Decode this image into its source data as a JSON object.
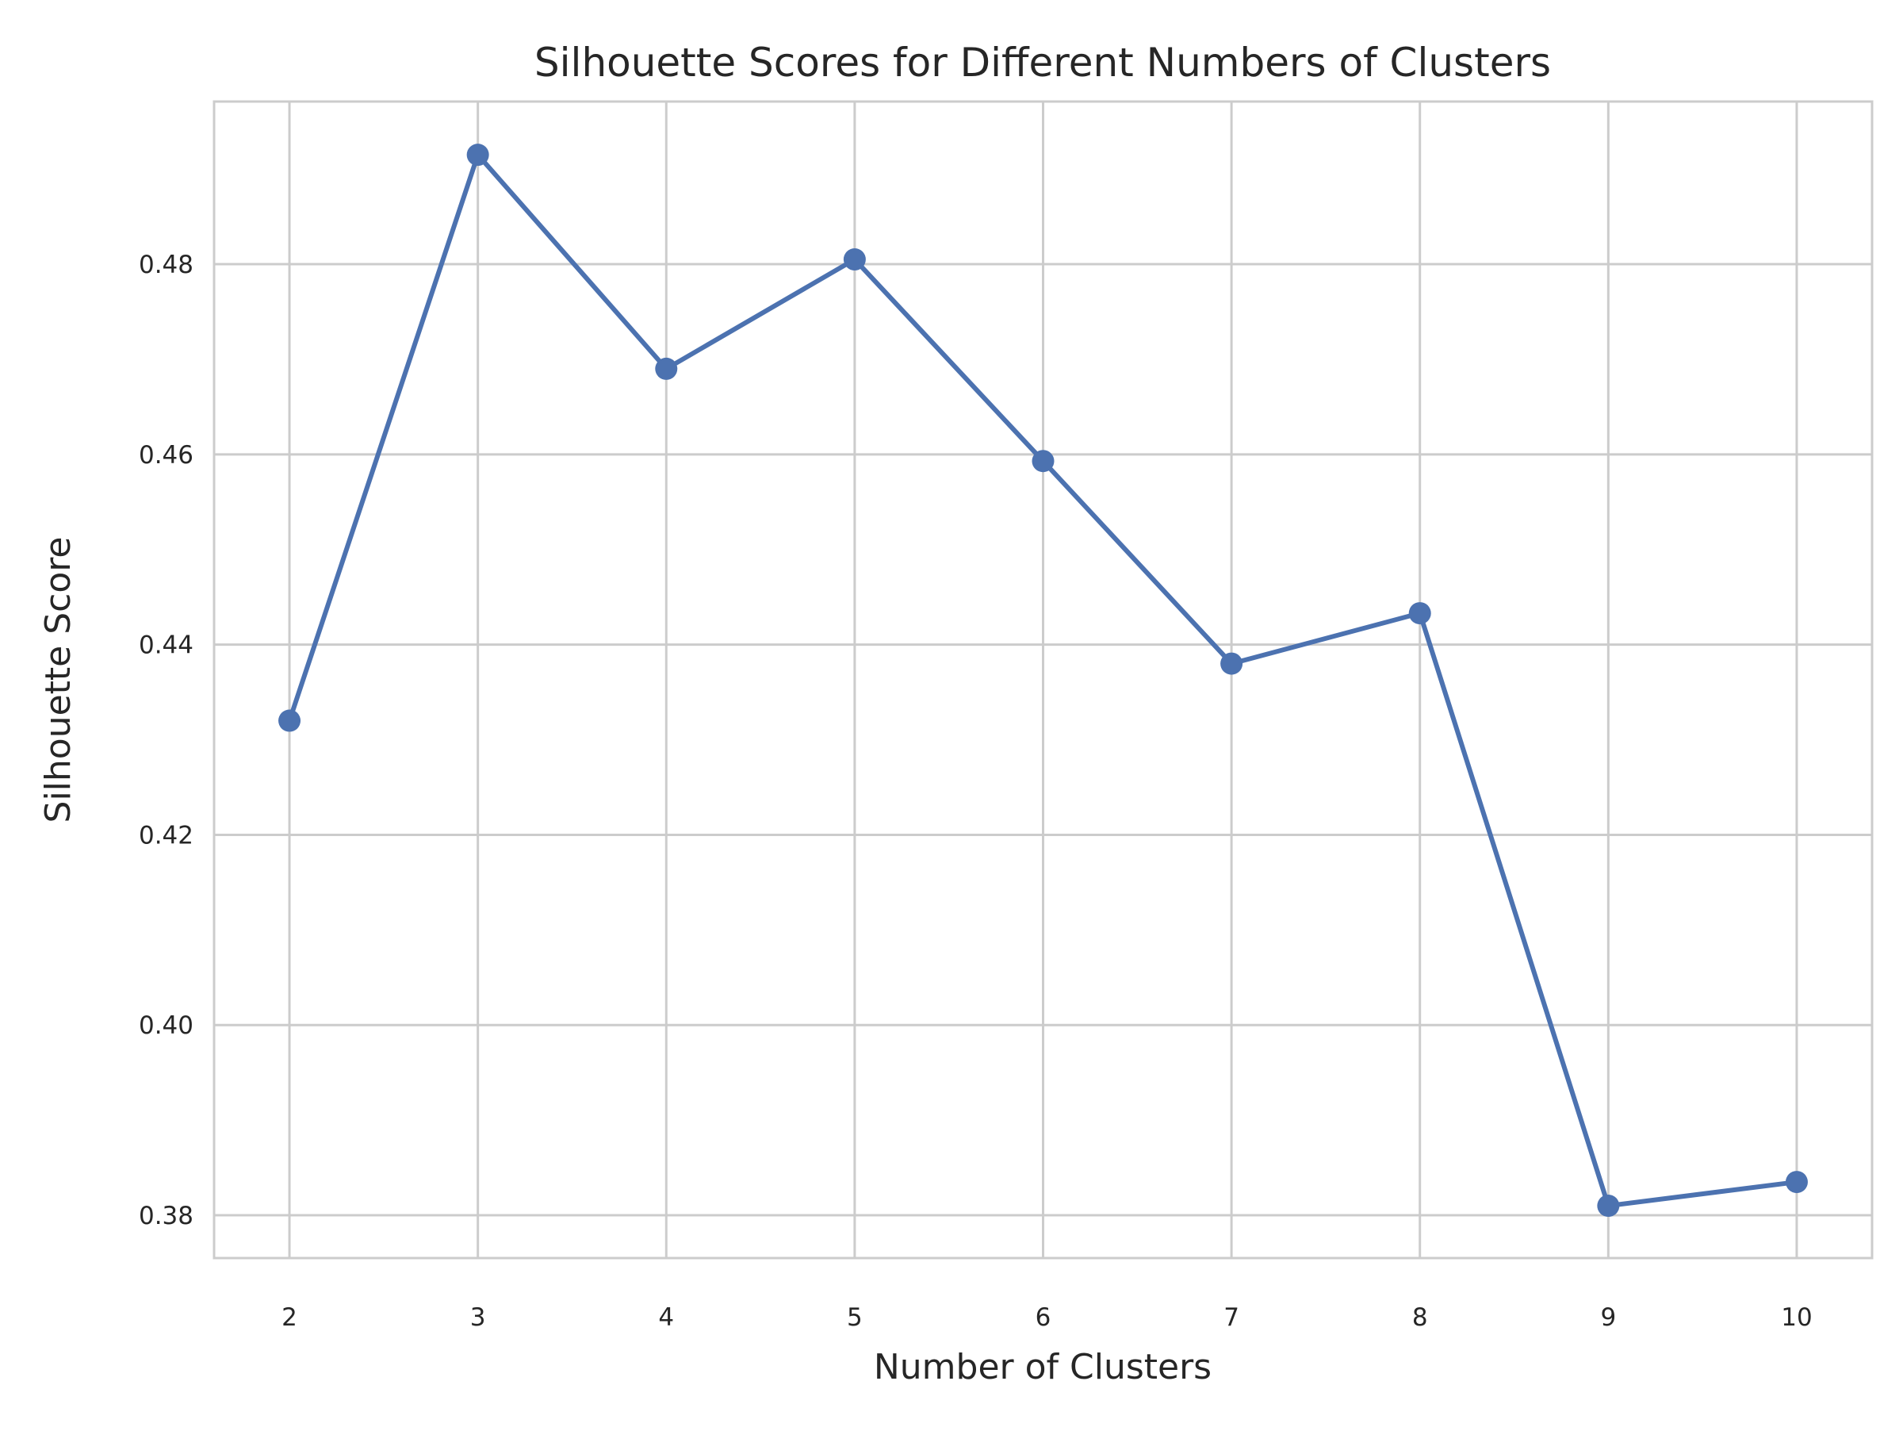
{
  "chart_data": {
    "type": "line",
    "title": "Silhouette Scores for Different Numbers of Clusters",
    "xlabel": "Number of Clusters",
    "ylabel": "Silhouette Score",
    "x": [
      2,
      3,
      4,
      5,
      6,
      7,
      8,
      9,
      10
    ],
    "series": [
      {
        "values": [
          0.432,
          0.4915,
          0.469,
          0.4805,
          0.4593,
          0.438,
          0.4433,
          0.381,
          0.3835
        ],
        "color": "#4c72b0",
        "marker": "circle"
      }
    ],
    "xticks": [
      2,
      3,
      4,
      5,
      6,
      7,
      8,
      9,
      10
    ],
    "xtick_labels": [
      "2",
      "3",
      "4",
      "5",
      "6",
      "7",
      "8",
      "9",
      "10"
    ],
    "yticks": [
      0.38,
      0.4,
      0.42,
      0.44,
      0.46,
      0.48
    ],
    "ytick_labels": [
      "0.38",
      "0.40",
      "0.42",
      "0.44",
      "0.46",
      "0.48"
    ],
    "xlim": [
      1.6,
      10.4
    ],
    "ylim": [
      0.3755,
      0.4971
    ],
    "grid": true,
    "legend": false,
    "colors": {
      "grid": "#cccccc",
      "frame": "#cccccc",
      "text": "#262626",
      "background": "#ffffff"
    }
  }
}
